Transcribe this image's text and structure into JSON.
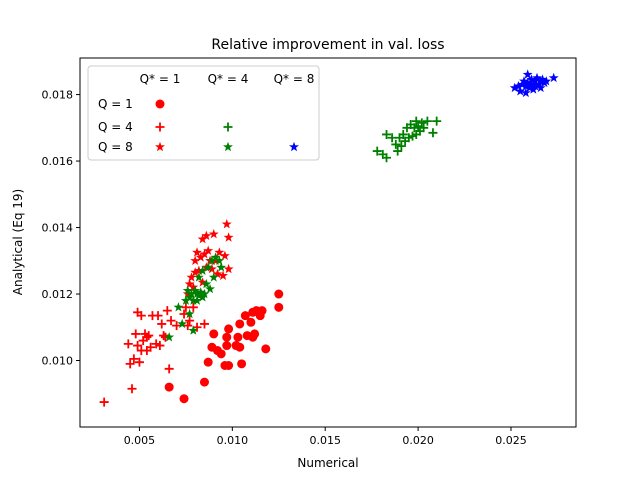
{
  "chart_data": {
    "type": "scatter",
    "title": "Relative improvement in val. loss",
    "xlabel": "Numerical",
    "ylabel": "Analytical (Eq 19)",
    "xlim": [
      0.0018,
      0.0285
    ],
    "ylim": [
      0.008,
      0.0191
    ],
    "xticks": [
      0.005,
      0.01,
      0.015,
      0.02,
      0.025
    ],
    "xtick_labels": [
      "0.005",
      "0.010",
      "0.015",
      "0.020",
      "0.025"
    ],
    "yticks": [
      0.01,
      0.012,
      0.014,
      0.016,
      0.018
    ],
    "ytick_labels": [
      "0.010",
      "0.012",
      "0.014",
      "0.016",
      "0.018"
    ],
    "grid": false,
    "legend": {
      "placement": "top-left",
      "column_headers": [
        "Q* = 1",
        "Q* = 4",
        "Q* = 8"
      ],
      "row_headers": [
        "Q = 1",
        "Q = 4",
        "Q = 8"
      ],
      "entries": [
        {
          "row": 0,
          "col": 0,
          "marker": "circle",
          "color": "#ff0000"
        },
        {
          "row": 1,
          "col": 0,
          "marker": "plus",
          "color": "#ff0000"
        },
        {
          "row": 1,
          "col": 1,
          "marker": "plus",
          "color": "#008000"
        },
        {
          "row": 2,
          "col": 0,
          "marker": "star",
          "color": "#ff0000"
        },
        {
          "row": 2,
          "col": 1,
          "marker": "star",
          "color": "#008000"
        },
        {
          "row": 2,
          "col": 2,
          "marker": "star",
          "color": "#0000ff"
        }
      ]
    },
    "series": [
      {
        "marker": "circle",
        "color": "#ff0000",
        "points": [
          [
            0.0066,
            0.0092
          ],
          [
            0.0074,
            0.00885
          ],
          [
            0.0085,
            0.00935
          ],
          [
            0.0087,
            0.00995
          ],
          [
            0.0089,
            0.0104
          ],
          [
            0.009,
            0.0108
          ],
          [
            0.0092,
            0.0103
          ],
          [
            0.0094,
            0.0102
          ],
          [
            0.0096,
            0.00985
          ],
          [
            0.0097,
            0.01045
          ],
          [
            0.0097,
            0.0107
          ],
          [
            0.0098,
            0.01095
          ],
          [
            0.0098,
            0.00985
          ],
          [
            0.0102,
            0.01045
          ],
          [
            0.0103,
            0.0107
          ],
          [
            0.0104,
            0.0104
          ],
          [
            0.0104,
            0.0111
          ],
          [
            0.0105,
            0.0099
          ],
          [
            0.0107,
            0.01135
          ],
          [
            0.0108,
            0.01075
          ],
          [
            0.011,
            0.01115
          ],
          [
            0.0111,
            0.01145
          ],
          [
            0.0111,
            0.0107
          ],
          [
            0.0112,
            0.0108
          ],
          [
            0.0113,
            0.0115
          ],
          [
            0.0115,
            0.01135
          ],
          [
            0.0116,
            0.0115
          ],
          [
            0.0118,
            0.01035
          ],
          [
            0.0125,
            0.012
          ],
          [
            0.0125,
            0.0116
          ]
        ]
      },
      {
        "marker": "plus",
        "color": "#ff0000",
        "points": [
          [
            0.0031,
            0.00875
          ],
          [
            0.0044,
            0.0105
          ],
          [
            0.0045,
            0.0099
          ],
          [
            0.0046,
            0.00915
          ],
          [
            0.0047,
            0.01005
          ],
          [
            0.0048,
            0.0108
          ],
          [
            0.0049,
            0.01045
          ],
          [
            0.0049,
            0.01145
          ],
          [
            0.005,
            0.00995
          ],
          [
            0.0051,
            0.0103
          ],
          [
            0.0051,
            0.01135
          ],
          [
            0.0052,
            0.0106
          ],
          [
            0.0053,
            0.0108
          ],
          [
            0.0054,
            0.0103
          ],
          [
            0.0054,
            0.0107
          ],
          [
            0.0055,
            0.01075
          ],
          [
            0.0056,
            0.0104
          ],
          [
            0.0057,
            0.01135
          ],
          [
            0.0059,
            0.0105
          ],
          [
            0.006,
            0.01135
          ],
          [
            0.0061,
            0.01045
          ],
          [
            0.0062,
            0.0111
          ],
          [
            0.0063,
            0.01075
          ],
          [
            0.0064,
            0.0107
          ],
          [
            0.0065,
            0.0115
          ],
          [
            0.0066,
            0.00975
          ],
          [
            0.0067,
            0.0112
          ],
          [
            0.007,
            0.01105
          ],
          [
            0.0074,
            0.0114
          ],
          [
            0.0075,
            0.0116
          ],
          [
            0.0076,
            0.01105
          ],
          [
            0.0077,
            0.0112
          ],
          [
            0.0079,
            0.0116
          ],
          [
            0.0081,
            0.011
          ],
          [
            0.0085,
            0.0111
          ]
        ]
      },
      {
        "marker": "star",
        "color": "#ff0000",
        "points": [
          [
            0.0076,
            0.012
          ],
          [
            0.0077,
            0.0123
          ],
          [
            0.0078,
            0.0125
          ],
          [
            0.0079,
            0.0122
          ],
          [
            0.008,
            0.01265
          ],
          [
            0.008,
            0.013
          ],
          [
            0.0081,
            0.01325
          ],
          [
            0.0082,
            0.0127
          ],
          [
            0.0083,
            0.0131
          ],
          [
            0.0084,
            0.01235
          ],
          [
            0.0084,
            0.01365
          ],
          [
            0.0085,
            0.0132
          ],
          [
            0.0086,
            0.01375
          ],
          [
            0.0086,
            0.0128
          ],
          [
            0.0087,
            0.0133
          ],
          [
            0.0088,
            0.013
          ],
          [
            0.0089,
            0.01275
          ],
          [
            0.009,
            0.0138
          ],
          [
            0.0091,
            0.013
          ],
          [
            0.0092,
            0.0126
          ],
          [
            0.0093,
            0.01325
          ],
          [
            0.0095,
            0.01255
          ],
          [
            0.0096,
            0.01315
          ],
          [
            0.0097,
            0.0141
          ],
          [
            0.0098,
            0.0137
          ],
          [
            0.0098,
            0.01275
          ]
        ]
      },
      {
        "marker": "plus",
        "color": "#008000",
        "points": [
          [
            0.0178,
            0.0163
          ],
          [
            0.0181,
            0.0162
          ],
          [
            0.0183,
            0.0161
          ],
          [
            0.0183,
            0.0168
          ],
          [
            0.0186,
            0.0167
          ],
          [
            0.0188,
            0.0165
          ],
          [
            0.0189,
            0.0163
          ],
          [
            0.019,
            0.0167
          ],
          [
            0.0191,
            0.01645
          ],
          [
            0.0192,
            0.0168
          ],
          [
            0.0193,
            0.0166
          ],
          [
            0.0194,
            0.017
          ],
          [
            0.0195,
            0.0167
          ],
          [
            0.0196,
            0.0171
          ],
          [
            0.0197,
            0.01675
          ],
          [
            0.0198,
            0.017
          ],
          [
            0.0199,
            0.0172
          ],
          [
            0.0199,
            0.0168
          ],
          [
            0.02,
            0.01705
          ],
          [
            0.0201,
            0.0169
          ],
          [
            0.0202,
            0.01715
          ],
          [
            0.0203,
            0.017
          ],
          [
            0.0205,
            0.0172
          ],
          [
            0.0208,
            0.01685
          ],
          [
            0.021,
            0.0172
          ]
        ]
      },
      {
        "marker": "star",
        "color": "#008000",
        "points": [
          [
            0.0066,
            0.0107
          ],
          [
            0.0071,
            0.0116
          ],
          [
            0.0073,
            0.0111
          ],
          [
            0.0075,
            0.0118
          ],
          [
            0.0076,
            0.0121
          ],
          [
            0.0077,
            0.0119
          ],
          [
            0.0077,
            0.0114
          ],
          [
            0.0078,
            0.012
          ],
          [
            0.0079,
            0.0118
          ],
          [
            0.0079,
            0.0109
          ],
          [
            0.008,
            0.0121
          ],
          [
            0.0081,
            0.012
          ],
          [
            0.0081,
            0.0118
          ],
          [
            0.0082,
            0.0125
          ],
          [
            0.0082,
            0.01195
          ],
          [
            0.0083,
            0.01205
          ],
          [
            0.0084,
            0.0119
          ],
          [
            0.0084,
            0.0127
          ],
          [
            0.0085,
            0.012
          ],
          [
            0.0086,
            0.0123
          ],
          [
            0.0087,
            0.0128
          ],
          [
            0.0088,
            0.01215
          ],
          [
            0.0089,
            0.013
          ],
          [
            0.009,
            0.0125
          ],
          [
            0.0091,
            0.0131
          ],
          [
            0.0093,
            0.013
          ],
          [
            0.0094,
            0.0128
          ]
        ]
      },
      {
        "marker": "star",
        "color": "#0000ff",
        "points": [
          [
            0.0252,
            0.0182
          ],
          [
            0.0254,
            0.01825
          ],
          [
            0.0255,
            0.0181
          ],
          [
            0.0256,
            0.0183
          ],
          [
            0.0257,
            0.0184
          ],
          [
            0.0258,
            0.01825
          ],
          [
            0.0258,
            0.01805
          ],
          [
            0.0259,
            0.0186
          ],
          [
            0.0259,
            0.01835
          ],
          [
            0.026,
            0.0182
          ],
          [
            0.0261,
            0.01845
          ],
          [
            0.0261,
            0.0183
          ],
          [
            0.0262,
            0.01815
          ],
          [
            0.0263,
            0.0184
          ],
          [
            0.0263,
            0.01825
          ],
          [
            0.0264,
            0.0185
          ],
          [
            0.0265,
            0.0183
          ],
          [
            0.0266,
            0.0184
          ],
          [
            0.0266,
            0.0182
          ],
          [
            0.0267,
            0.01845
          ],
          [
            0.0268,
            0.01835
          ],
          [
            0.0269,
            0.0184
          ],
          [
            0.0273,
            0.0185
          ]
        ]
      }
    ]
  }
}
